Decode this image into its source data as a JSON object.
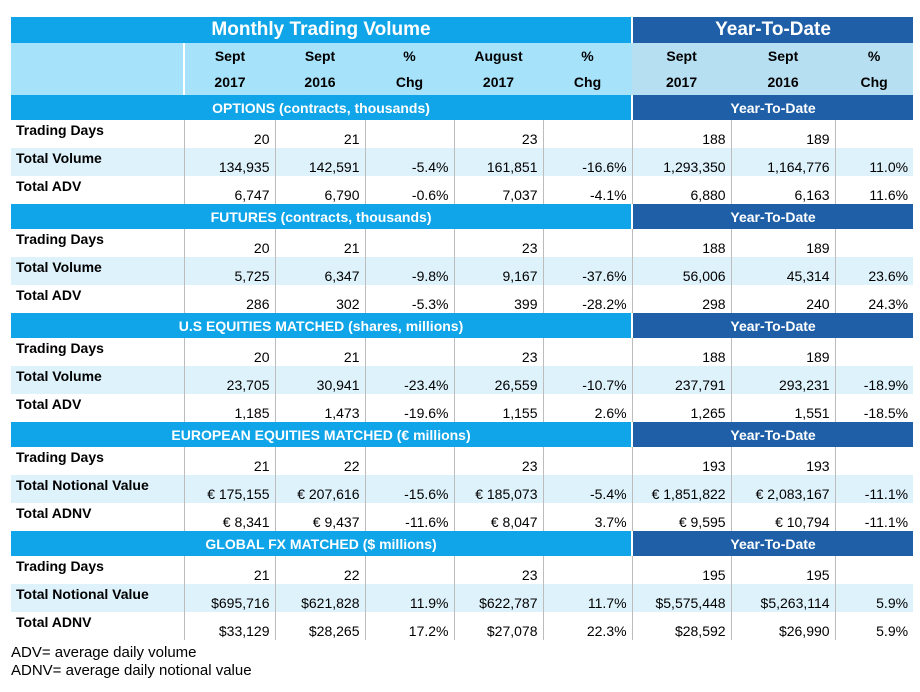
{
  "header": {
    "monthly_title": "Monthly Trading Volume",
    "ytd_title": "Year-To-Date",
    "col_top": [
      "Sept",
      "Sept",
      "%",
      "August",
      "%",
      "Sept",
      "Sept",
      "%"
    ],
    "col_bottom": [
      "2017",
      "2016",
      "Chg",
      "2017",
      "Chg",
      "2017",
      "2016",
      "Chg"
    ]
  },
  "sections": [
    {
      "title": "OPTIONS (contracts, thousands)",
      "ytd_label": "Year-To-Date",
      "rows": [
        {
          "label": "Trading Days",
          "values": [
            "20",
            "21",
            "",
            "23",
            "",
            "188",
            "189",
            ""
          ]
        },
        {
          "label": "Total Volume",
          "values": [
            "134,935",
            "142,591",
            "-5.4%",
            "161,851",
            "-16.6%",
            "1,293,350",
            "1,164,776",
            "11.0%"
          ]
        },
        {
          "label": "Total ADV",
          "values": [
            "6,747",
            "6,790",
            "-0.6%",
            "7,037",
            "-4.1%",
            "6,880",
            "6,163",
            "11.6%"
          ]
        }
      ]
    },
    {
      "title": "FUTURES (contracts, thousands)",
      "ytd_label": "Year-To-Date",
      "rows": [
        {
          "label": "Trading Days",
          "values": [
            "20",
            "21",
            "",
            "23",
            "",
            "188",
            "189",
            ""
          ]
        },
        {
          "label": "Total Volume",
          "values": [
            "5,725",
            "6,347",
            "-9.8%",
            "9,167",
            "-37.6%",
            "56,006",
            "45,314",
            "23.6%"
          ]
        },
        {
          "label": "Total ADV",
          "values": [
            "286",
            "302",
            "-5.3%",
            "399",
            "-28.2%",
            "298",
            "240",
            "24.3%"
          ]
        }
      ]
    },
    {
      "title": "U.S EQUITIES MATCHED (shares, millions)",
      "ytd_label": "Year-To-Date",
      "rows": [
        {
          "label": "Trading Days",
          "values": [
            "20",
            "21",
            "",
            "23",
            "",
            "188",
            "189",
            ""
          ]
        },
        {
          "label": "Total Volume",
          "values": [
            "23,705",
            "30,941",
            "-23.4%",
            "26,559",
            "-10.7%",
            "237,791",
            "293,231",
            "-18.9%"
          ]
        },
        {
          "label": "Total ADV",
          "values": [
            "1,185",
            "1,473",
            "-19.6%",
            "1,155",
            "2.6%",
            "1,265",
            "1,551",
            "-18.5%"
          ]
        }
      ]
    },
    {
      "title": "EUROPEAN EQUITIES MATCHED (€ millions)",
      "ytd_label": "Year-To-Date",
      "rows": [
        {
          "label": "Trading Days",
          "values": [
            "21",
            "22",
            "",
            "23",
            "",
            "193",
            "193",
            ""
          ]
        },
        {
          "label": "Total Notional Value",
          "values": [
            "€ 175,155",
            "€ 207,616",
            "-15.6%",
            "€ 185,073",
            "-5.4%",
            "€ 1,851,822",
            "€ 2,083,167",
            "-11.1%"
          ]
        },
        {
          "label": "Total ADNV",
          "values": [
            "€ 8,341",
            "€ 9,437",
            "-11.6%",
            "€ 8,047",
            "3.7%",
            "€ 9,595",
            "€ 10,794",
            "-11.1%"
          ]
        }
      ]
    },
    {
      "title": "GLOBAL FX MATCHED ($ millions)",
      "ytd_label": "Year-To-Date",
      "rows": [
        {
          "label": "Trading Days",
          "values": [
            "21",
            "22",
            "",
            "23",
            "",
            "195",
            "195",
            ""
          ]
        },
        {
          "label": "Total Notional Value",
          "values": [
            "$695,716",
            "$621,828",
            "11.9%",
            "$622,787",
            "11.7%",
            "$5,575,448",
            "$5,263,114",
            "5.9%"
          ]
        },
        {
          "label": "Total ADNV",
          "values": [
            "$33,129",
            "$28,265",
            "17.2%",
            "$27,078",
            "22.3%",
            "$28,592",
            "$26,990",
            "5.9%"
          ]
        }
      ]
    }
  ],
  "notes": [
    "ADV= average daily volume",
    "ADNV= average daily notional value"
  ]
}
